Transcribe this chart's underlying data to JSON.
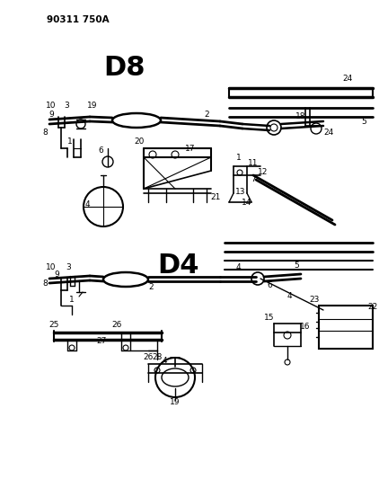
{
  "title": "90311 750A",
  "background_color": "#ffffff",
  "figsize": [
    4.22,
    5.33
  ],
  "dpi": 100,
  "label_D8": "D8",
  "label_D4": "D4",
  "text_color": "#000000",
  "line_color": "#000000"
}
